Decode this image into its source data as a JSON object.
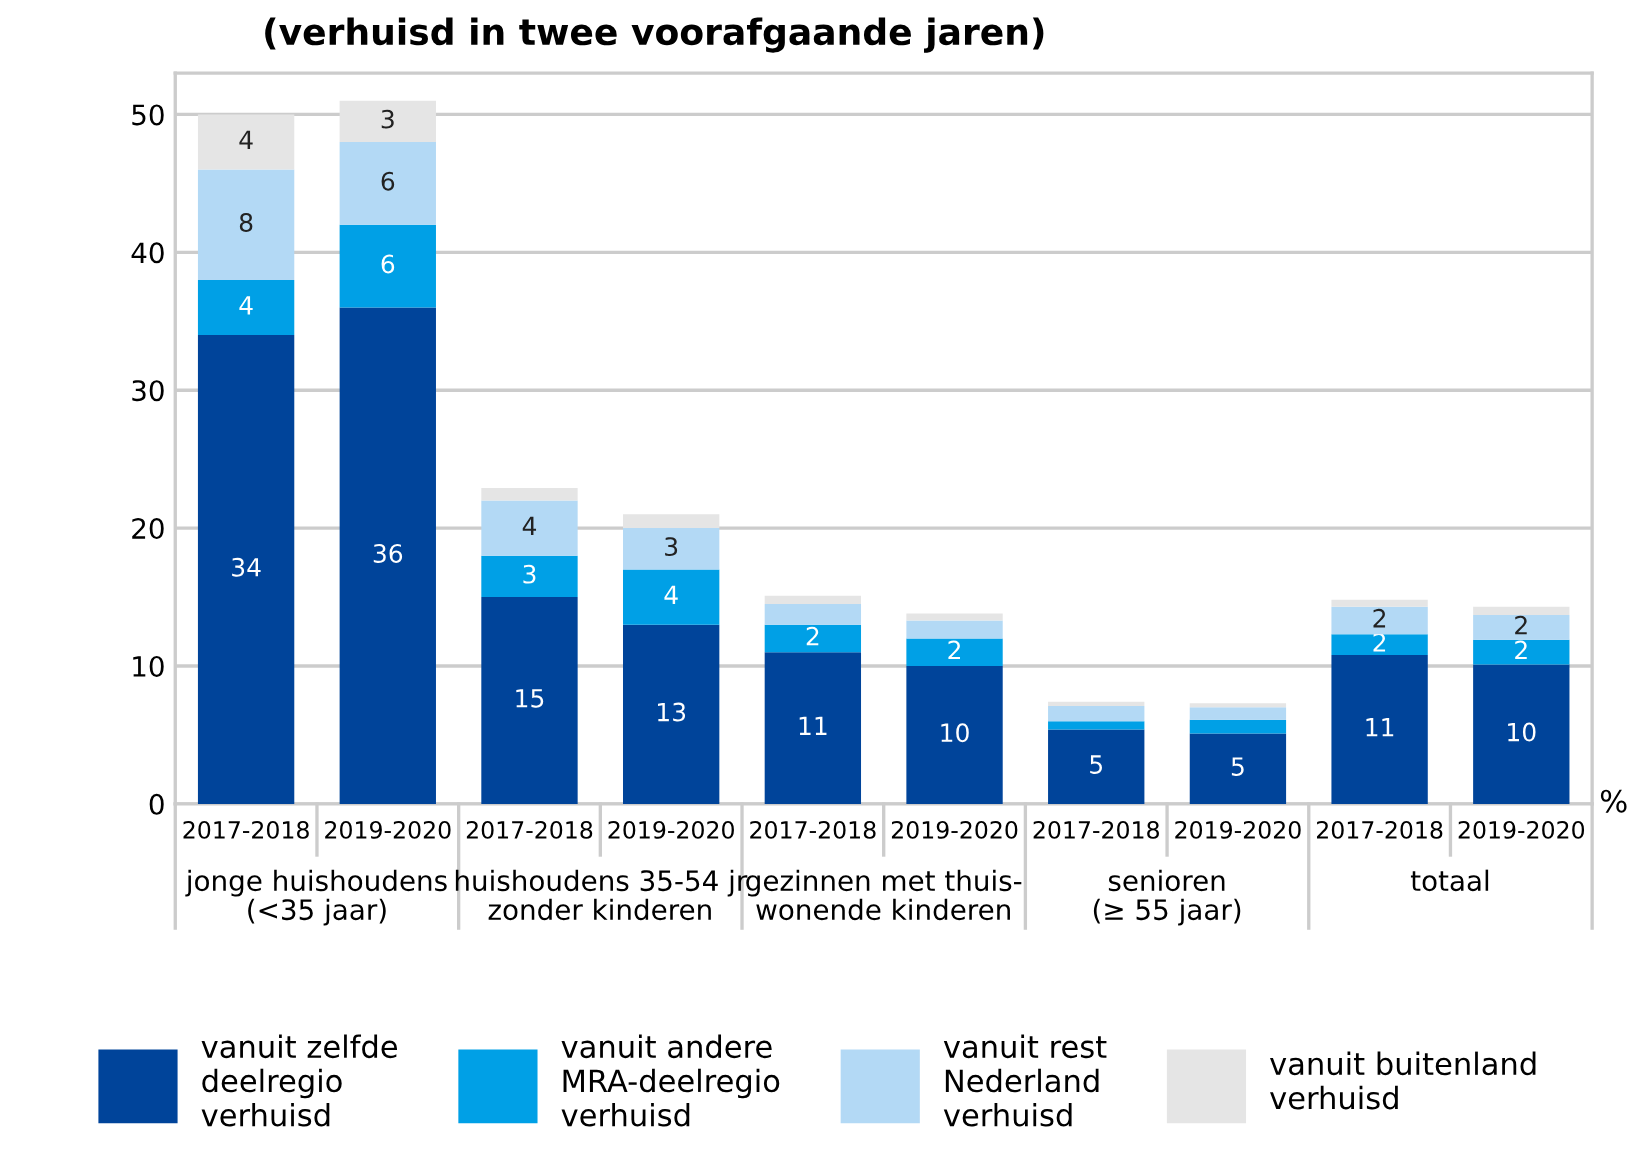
{
  "chart_data": {
    "type": "bar",
    "stacked": true,
    "title": "(verhuisd in twee voorafgaande jaren)",
    "ylabel": "%",
    "categories": [
      "2017-2018",
      "2019-2020",
      "2017-2018",
      "2019-2020",
      "2017-2018",
      "2019-2020",
      "2017-2018",
      "2019-2020",
      "2017-2018",
      "2019-2020"
    ],
    "annotations": [
      "jonge huishoudens\n(<35 jaar)",
      "huishoudens 35-54 jr\nzonder kinderen",
      "gezinnen met thuis-\nwonende kinderen",
      "senioren\n(≥ 55 jaar)",
      "totaal"
    ],
    "series": [
      {
        "name": "vanuit zelfde\ndeelregio\nverhuisd",
        "color": "#00449a",
        "values": [
          34,
          36,
          15,
          13,
          11,
          10,
          5.4,
          5.1,
          10.8,
          10.1
        ],
        "value_labels": [
          "34",
          "36",
          "15",
          "13",
          "11",
          "10",
          "5",
          "5",
          "11",
          "10"
        ]
      },
      {
        "name": "vanuit andere\nMRA-deelregio\nverhuisd",
        "color": "#00a0e6",
        "values": [
          4,
          6,
          3,
          4,
          2,
          2,
          0.6,
          1.0,
          1.5,
          1.8
        ],
        "value_labels": [
          "4",
          "6",
          "3",
          "4",
          "2",
          "2",
          null,
          null,
          "2",
          "2"
        ]
      },
      {
        "name": "vanuit rest\nNederland\nverhuisd",
        "color": "#b3d9f5",
        "values": [
          8,
          6,
          4,
          3,
          1.5,
          1.3,
          1.1,
          0.9,
          2.0,
          1.8
        ],
        "value_labels": [
          "8",
          "6",
          "4",
          "3",
          null,
          null,
          null,
          null,
          "2",
          "2"
        ]
      },
      {
        "name": "vanuit buitenland\nverhuisd",
        "color": "#e5e5e5",
        "values": [
          4,
          3,
          0.9,
          1.0,
          0.6,
          0.5,
          0.3,
          0.3,
          0.5,
          0.6
        ],
        "value_labels": [
          "4",
          "3",
          null,
          null,
          null,
          null,
          null,
          null,
          null,
          null
        ]
      }
    ],
    "ylim": [
      0,
      53
    ],
    "yticks": [
      0,
      10,
      20,
      30,
      40,
      50
    ],
    "grid": "y",
    "legend": "bottom"
  }
}
